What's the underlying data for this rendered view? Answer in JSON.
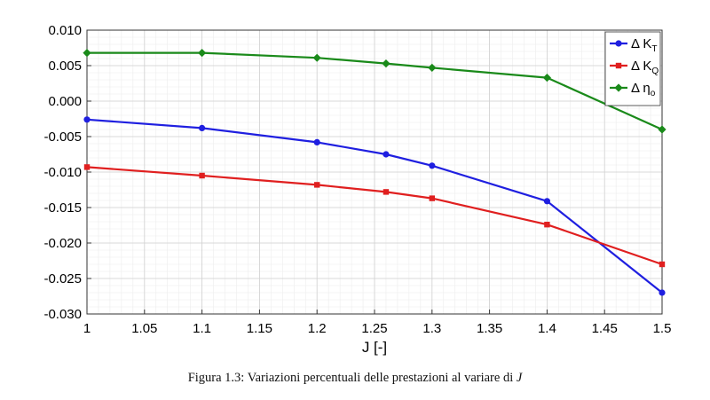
{
  "chart_data": {
    "type": "line",
    "x": [
      1,
      1.1,
      1.2,
      1.26,
      1.3,
      1.4,
      1.5
    ],
    "xlabel": "J [-]",
    "ylabel": "",
    "xlim": [
      1,
      1.5
    ],
    "ylim": [
      -0.03,
      0.01
    ],
    "xticks": [
      "1",
      "1.05",
      "1.1",
      "1.15",
      "1.2",
      "1.25",
      "1.3",
      "1.35",
      "1.4",
      "1.45",
      "1.5"
    ],
    "yticks": [
      "0.010",
      "0.005",
      "0.000",
      "-0.005",
      "-0.010",
      "-0.015",
      "-0.020",
      "-0.025",
      "-0.030"
    ],
    "grid": true,
    "minor_grid": true,
    "legend_position": "top-right",
    "series": [
      {
        "name": "Δ K_T",
        "legend_main": "Δ K",
        "legend_sub": "T",
        "color": "#1f1fe0",
        "marker": "circle",
        "values": [
          -0.0026,
          -0.0038,
          -0.0058,
          -0.0075,
          -0.0091,
          -0.0141,
          -0.027
        ]
      },
      {
        "name": "Δ K_Q",
        "legend_main": "Δ K",
        "legend_sub": "Q",
        "color": "#e01f1f",
        "marker": "square",
        "values": [
          -0.0093,
          -0.0105,
          -0.0118,
          -0.0128,
          -0.0137,
          -0.0174,
          -0.023
        ]
      },
      {
        "name": "Δ η_o",
        "legend_main": "Δ η",
        "legend_sub": "o",
        "color": "#1a8a1a",
        "marker": "diamond",
        "values": [
          0.0068,
          0.0068,
          0.0061,
          0.0053,
          0.0047,
          0.0033,
          -0.004
        ]
      }
    ]
  },
  "caption": {
    "text": "Figura 1.3: Variazioni percentuali delle prestazioni al variare di ",
    "variable": "J"
  }
}
